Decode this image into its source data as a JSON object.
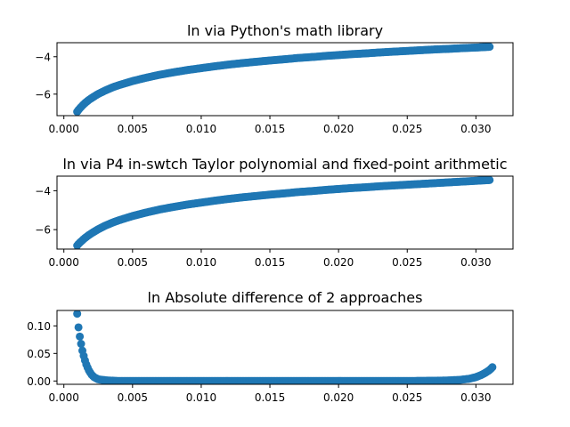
{
  "chart_data": [
    {
      "type": "scatter",
      "title": "ln via Python's math library",
      "xlabel": "",
      "ylabel": "",
      "xlim": [
        -0.0005,
        0.0327
      ],
      "ylim": [
        -7.15,
        -3.25
      ],
      "xticks": [
        "0.000",
        "0.005",
        "0.010",
        "0.015",
        "0.020",
        "0.025",
        "0.030"
      ],
      "yticks": [
        "−4",
        "−6"
      ],
      "color": "#1f77b4",
      "grid": false,
      "series": [
        {
          "x": [
            0.00097,
            0.0011,
            0.0013,
            0.0015,
            0.0018,
            0.0021,
            0.0025,
            0.003,
            0.0035,
            0.004,
            0.005,
            0.006,
            0.007,
            0.008,
            0.009,
            0.01,
            0.011,
            0.012,
            0.013,
            0.014,
            0.015,
            0.016,
            0.017,
            0.018,
            0.019,
            0.02,
            0.021,
            0.022,
            0.023,
            0.024,
            0.025,
            0.026,
            0.027,
            0.028,
            0.029,
            0.03,
            0.031
          ],
          "y": [
            -6.94,
            -6.81,
            -6.65,
            -6.5,
            -6.32,
            -6.17,
            -5.99,
            -5.81,
            -5.65,
            -5.52,
            -5.3,
            -5.12,
            -4.96,
            -4.83,
            -4.71,
            -4.61,
            -4.51,
            -4.42,
            -4.34,
            -4.27,
            -4.2,
            -4.14,
            -4.07,
            -4.02,
            -3.96,
            -3.91,
            -3.86,
            -3.82,
            -3.77,
            -3.73,
            -3.69,
            -3.65,
            -3.61,
            -3.58,
            -3.54,
            -3.51,
            -3.47
          ]
        }
      ]
    },
    {
      "type": "scatter",
      "title": "ln via P4 in-swtch Taylor polynomial and fixed-point arithmetic",
      "xlabel": "",
      "ylabel": "",
      "xlim": [
        -0.0005,
        0.0327
      ],
      "ylim": [
        -7.0,
        -3.25
      ],
      "xticks": [
        "0.000",
        "0.005",
        "0.010",
        "0.015",
        "0.020",
        "0.025",
        "0.030"
      ],
      "yticks": [
        "−4",
        "−6"
      ],
      "color": "#1f77b4",
      "grid": false,
      "series": [
        {
          "x": [
            0.00097,
            0.0011,
            0.0013,
            0.0015,
            0.0018,
            0.0021,
            0.0025,
            0.003,
            0.0035,
            0.004,
            0.005,
            0.006,
            0.007,
            0.008,
            0.009,
            0.01,
            0.011,
            0.012,
            0.013,
            0.014,
            0.015,
            0.016,
            0.017,
            0.018,
            0.019,
            0.02,
            0.021,
            0.022,
            0.023,
            0.024,
            0.025,
            0.026,
            0.027,
            0.028,
            0.029,
            0.03,
            0.031
          ],
          "y": [
            -6.82,
            -6.71,
            -6.58,
            -6.45,
            -6.29,
            -6.15,
            -5.98,
            -5.8,
            -5.65,
            -5.52,
            -5.3,
            -5.12,
            -4.96,
            -4.83,
            -4.71,
            -4.61,
            -4.51,
            -4.42,
            -4.34,
            -4.27,
            -4.2,
            -4.14,
            -4.07,
            -4.02,
            -3.96,
            -3.91,
            -3.86,
            -3.82,
            -3.77,
            -3.73,
            -3.69,
            -3.65,
            -3.61,
            -3.57,
            -3.53,
            -3.49,
            -3.45
          ]
        }
      ]
    },
    {
      "type": "scatter",
      "title": "ln Absolute difference of 2 approaches",
      "xlabel": "",
      "ylabel": "",
      "xlim": [
        -0.0005,
        0.0327
      ],
      "ylim": [
        -0.006,
        0.128
      ],
      "xticks": [
        "0.000",
        "0.005",
        "0.010",
        "0.015",
        "0.020",
        "0.025",
        "0.030"
      ],
      "yticks": [
        "0.00",
        "0.05",
        "0.10"
      ],
      "color": "#1f77b4",
      "grid": false,
      "series": [
        {
          "x": [
            0.00097,
            0.00105,
            0.00115,
            0.00125,
            0.00135,
            0.00145,
            0.0016,
            0.0018,
            0.002,
            0.0022,
            0.0025,
            0.0028,
            0.0032,
            0.0036,
            0.004,
            0.005,
            0.006,
            0.008,
            0.01,
            0.012,
            0.015,
            0.018,
            0.02,
            0.022,
            0.025,
            0.027,
            0.028,
            0.0288,
            0.0295,
            0.03,
            0.0304,
            0.0307,
            0.031,
            0.0312
          ],
          "y": [
            0.122,
            0.1,
            0.082,
            0.068,
            0.055,
            0.045,
            0.032,
            0.02,
            0.012,
            0.007,
            0.003,
            0.002,
            0.001,
            0.0005,
            0.0,
            0.0,
            0.0,
            0.0,
            0.0,
            0.0,
            0.0,
            0.0,
            0.0,
            0.0,
            0.0,
            0.0005,
            0.001,
            0.002,
            0.004,
            0.007,
            0.011,
            0.015,
            0.02,
            0.025
          ]
        }
      ]
    }
  ]
}
